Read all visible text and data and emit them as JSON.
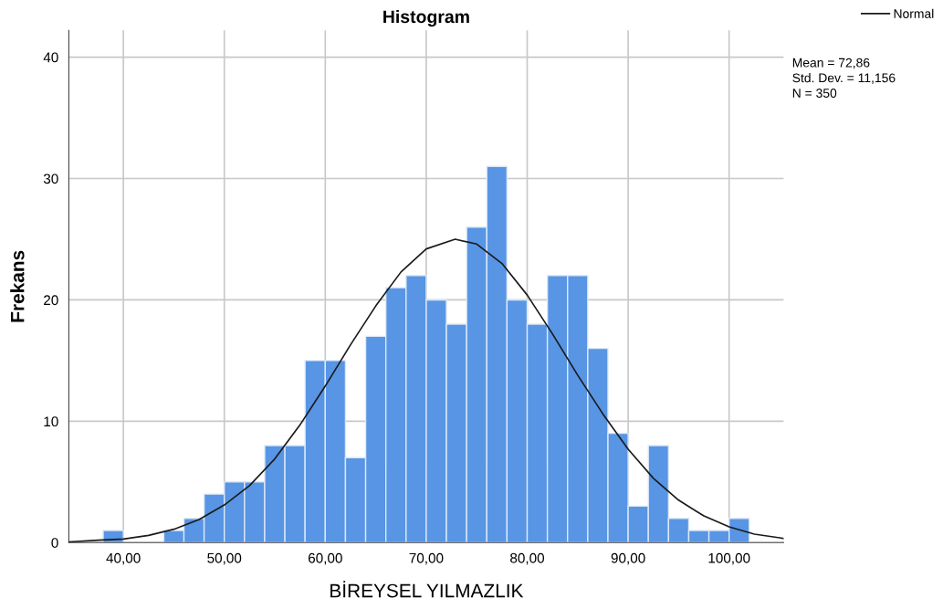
{
  "chart_data": {
    "type": "histogram",
    "title": "Histogram",
    "xlabel": "BİREYSEL YILMAZLIK",
    "ylabel": "Frekans",
    "bins": [
      38,
      40,
      42,
      44,
      46,
      48,
      50,
      52,
      54,
      56,
      58,
      60,
      62,
      64,
      66,
      68,
      70,
      72,
      74,
      76,
      78,
      80,
      82,
      84,
      86,
      88,
      90,
      92,
      94,
      96,
      98,
      100,
      102
    ],
    "values": [
      1,
      0,
      0,
      1,
      2,
      4,
      5,
      5,
      8,
      8,
      15,
      15,
      7,
      17,
      21,
      22,
      20,
      18,
      26,
      31,
      20,
      18,
      22,
      22,
      16,
      9,
      3,
      8,
      2,
      1,
      1,
      2
    ],
    "color": "#5895e4",
    "series": [
      {
        "name": "Normal",
        "type": "line",
        "color": "#1a1a1a",
        "x": [
          34.6,
          37.5,
          40,
          42.5,
          45,
          47.5,
          50,
          52.5,
          55,
          57.5,
          60,
          62.5,
          65,
          67.5,
          70,
          72.86,
          75,
          77.5,
          80,
          82.5,
          85,
          87.5,
          90,
          92.5,
          95,
          97.5,
          100,
          102.5,
          105,
          105.4
        ],
        "values": [
          0.06,
          0.2,
          0.3,
          0.6,
          1.1,
          1.9,
          3.1,
          4.7,
          6.9,
          9.7,
          12.9,
          16.3,
          19.5,
          22.3,
          24.2,
          25.0,
          24.6,
          23.0,
          20.4,
          17.2,
          13.8,
          10.6,
          7.7,
          5.3,
          3.5,
          2.2,
          1.3,
          0.7,
          0.4,
          0.34
        ]
      }
    ],
    "xlim": [
      34.6,
      105.4
    ],
    "xticks": [
      {
        "value": 40,
        "label": "40,00"
      },
      {
        "value": 50,
        "label": "50,00"
      },
      {
        "value": 60,
        "label": "60,00"
      },
      {
        "value": 70,
        "label": "70,00"
      },
      {
        "value": 80,
        "label": "80,00"
      },
      {
        "value": 90,
        "label": "90,00"
      },
      {
        "value": 100,
        "label": "100,00"
      }
    ],
    "ylim": [
      0,
      42.2
    ],
    "yticks": [
      0,
      10,
      20,
      30,
      40
    ],
    "grid": true,
    "legend": "top right",
    "marker": "none",
    "line_style": "solid",
    "annotations": [
      "Mean = 72,86",
      "Std. Dev. = 11,156",
      "N = 350"
    ]
  }
}
